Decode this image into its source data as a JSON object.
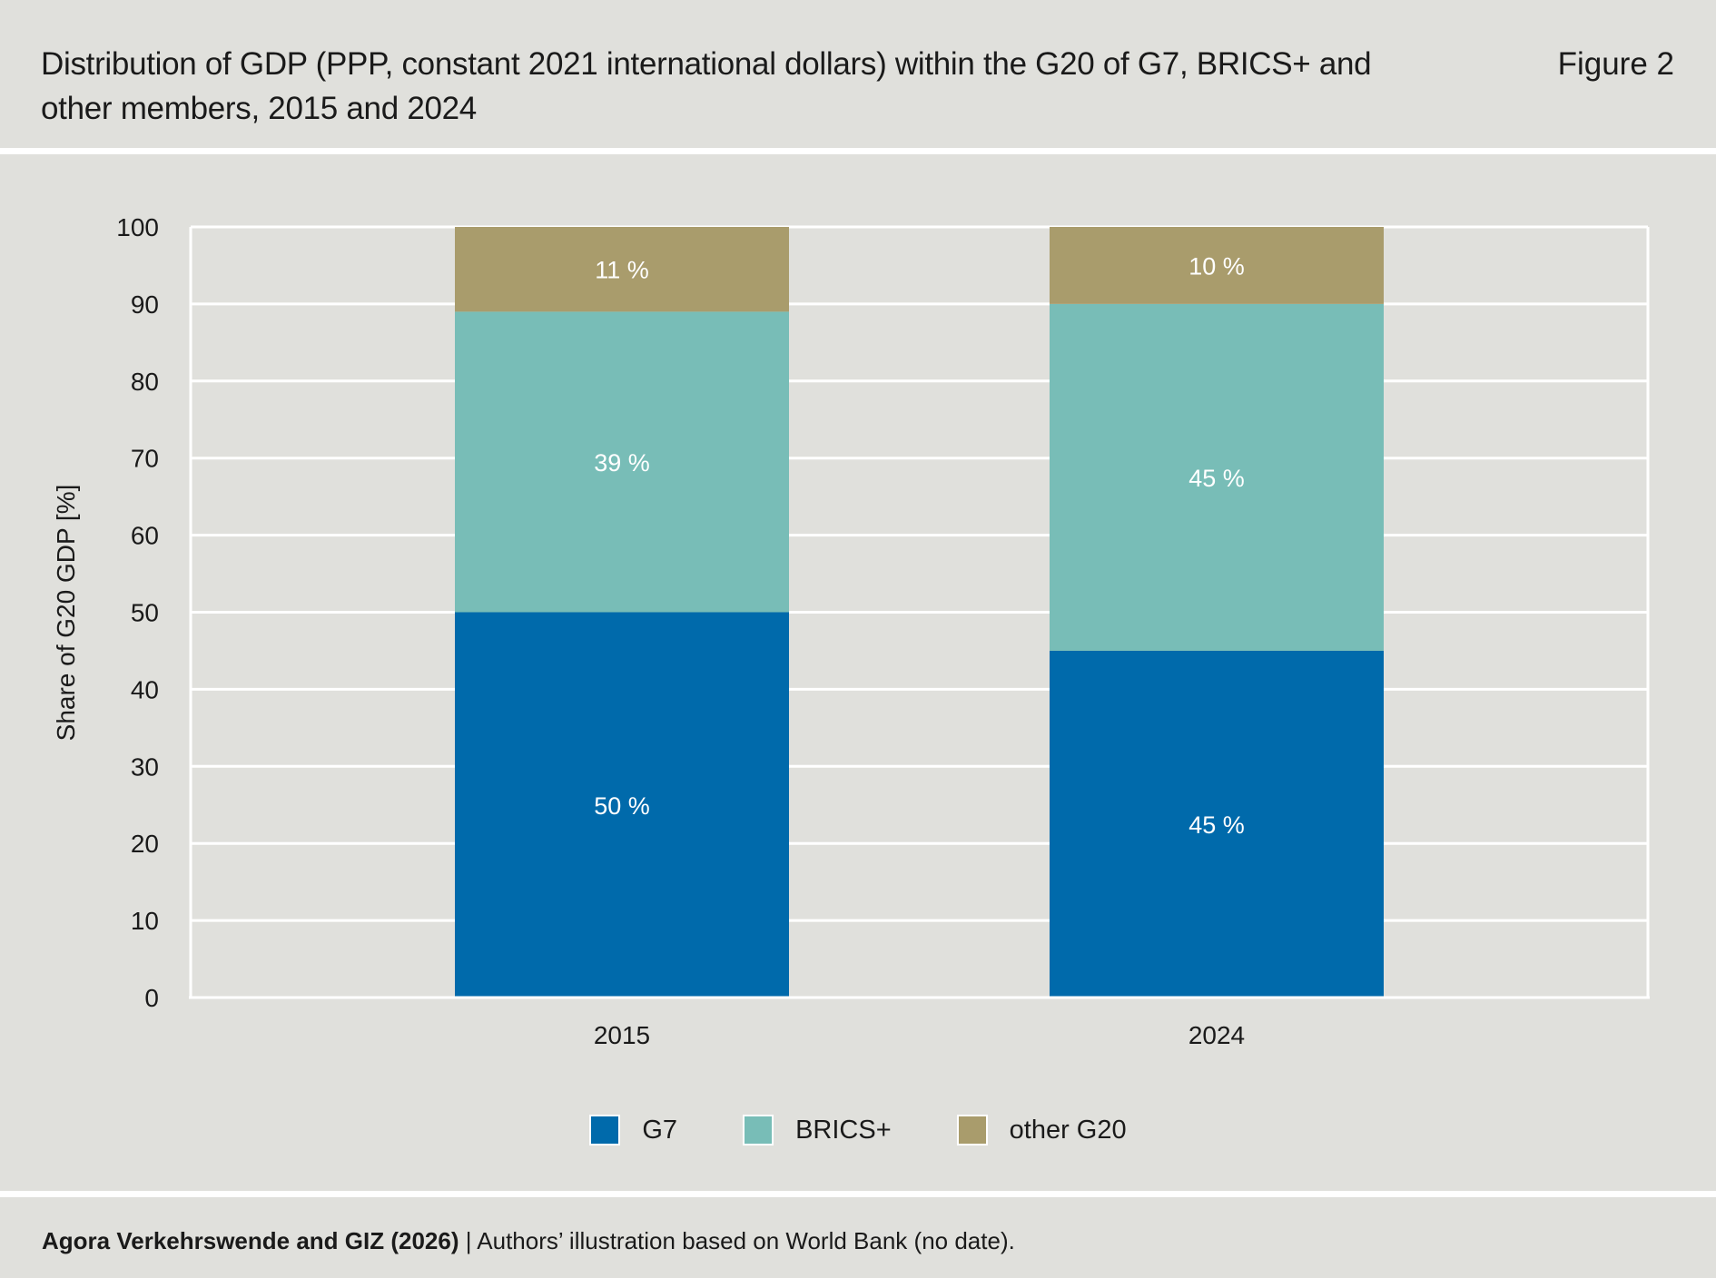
{
  "header": {
    "title": "Distribution of GDP (PPP, constant 2021 international dollars) within the G20 of G7, BRICS+ and other members, 2015 and 2024",
    "figure_label": "Figure 2"
  },
  "footer": {
    "source_bold": "Agora Verkehrswende and GIZ (2026)",
    "separator": " | ",
    "source_text": "Authors’ illustration based on World Bank (no date)."
  },
  "chart_data": {
    "type": "bar",
    "stacked": true,
    "categories": [
      "2015",
      "2024"
    ],
    "series": [
      {
        "name": "G7",
        "values": [
          50,
          45
        ],
        "labels": [
          "50 %",
          "45 %"
        ],
        "color": "#006aab"
      },
      {
        "name": "BRICS+",
        "values": [
          39,
          45
        ],
        "labels": [
          "39 %",
          "45 %"
        ],
        "color": "#78bdb7"
      },
      {
        "name": "other G20",
        "values": [
          11,
          10
        ],
        "labels": [
          "11 %",
          "10 %"
        ],
        "color": "#a99c6c"
      }
    ],
    "ylabel": "Share of G20 GDP [%]",
    "xlabel": "",
    "ylim": [
      0,
      100
    ],
    "yticks": [
      "0",
      "10",
      "20",
      "30",
      "40",
      "50",
      "60",
      "70",
      "80",
      "90",
      "100"
    ],
    "grid": true,
    "legend": "bottom-center"
  }
}
